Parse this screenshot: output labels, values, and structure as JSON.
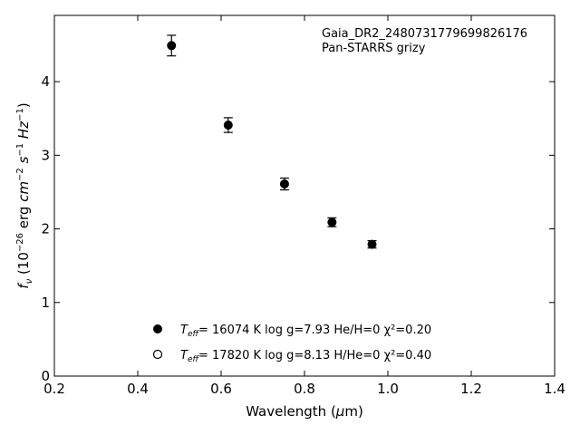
{
  "chart_data": {
    "type": "scatter",
    "xlabel": "Wavelength (μm)",
    "ylabel": "f_ν (10^-26 erg cm^-2 s^-1 Hz^-1)",
    "xlim": [
      0.2,
      1.4
    ],
    "ylim": [
      0,
      4.9
    ],
    "xticks": [
      "0.2",
      "0.4",
      "0.6",
      "0.8",
      "1.0",
      "1.2",
      "1.4"
    ],
    "yticks": [
      "0",
      "1",
      "2",
      "3",
      "4"
    ],
    "grid": false,
    "annotations": [
      "Gaia_DR2_2480731779699826176",
      "Pan-STARRS grizy"
    ],
    "series": [
      {
        "marker": "filled-circle",
        "x": [
          0.481,
          0.617,
          0.752,
          0.866,
          0.962
        ],
        "y": [
          4.49,
          3.41,
          2.61,
          2.09,
          1.79
        ],
        "yerr": [
          0.14,
          0.1,
          0.08,
          0.06,
          0.05
        ]
      }
    ],
    "legend": {
      "placement": "lower-center",
      "entries": [
        {
          "marker": "filled-circle",
          "teff_label": "T_eff",
          "text": "= 16074 K  log g=7.93  He/H=0  χ²=0.20"
        },
        {
          "marker": "open-circle",
          "teff_label": "T_eff",
          "text": "= 17820 K  log g=8.13  H/He=0  χ²=0.40"
        }
      ]
    }
  }
}
